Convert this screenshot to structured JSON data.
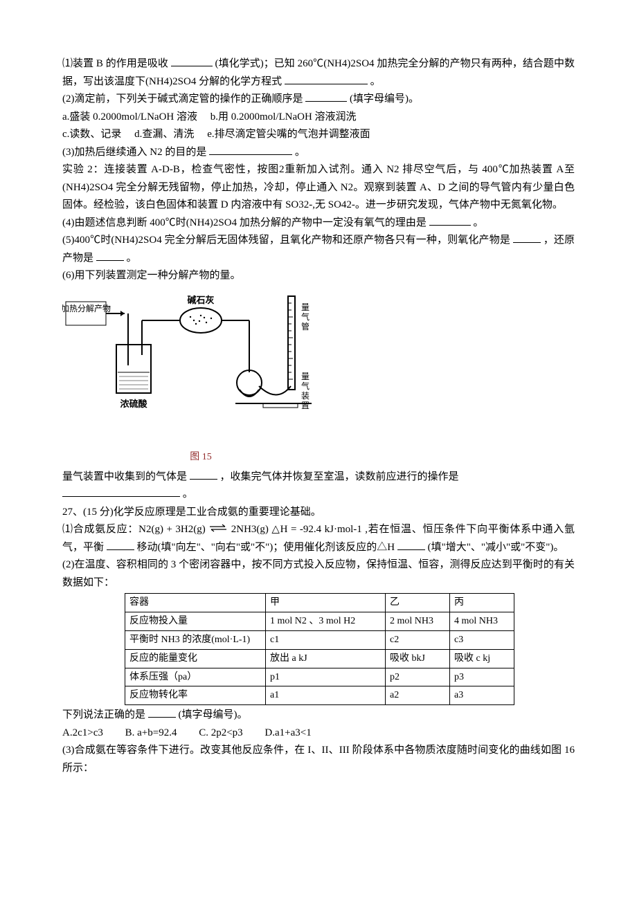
{
  "q26": {
    "p1_a": "⑴装置 B 的作用是吸收",
    "p1_b": "(填化学式)；已知 260℃(NH4)2SO4 加热完全分解的产物只有两种，结合题中数据，写出该温度下(NH4)2SO4 分解的化学方程式",
    "p1_c": "。",
    "p2_a": "(2)滴定前，下列关于碱式滴定管的操作的正确顺序是",
    "p2_b": "(填字母编号)。",
    "opt_a": "a.盛装 0.2000mol/LNaOH 溶液",
    "opt_b": "b.用 0.2000mol/LNaOH 溶液润洗",
    "opt_c": "c.读数、记录",
    "opt_d": "d.查漏、清洗",
    "opt_e": "e.排尽滴定管尖嘴的气泡并调整液面",
    "p3_a": "(3)加热后继续通入 N2 的目的是",
    "p3_b": "。",
    "exp2": "实验 2：连接装置 A-D-B，检查气密性，按图2重新加入试剂。通入 N2 排尽空气后，与 400℃加热装置 A至(NH4)2SO4 完全分解无残留物，停止加热，冷却，停止通入 N2。观察到装置 A、D 之间的导气管内有少量白色固体。经检验，该白色固体和装置 D 内溶液中有 SO32-,无 SO42-。进一步研究发现，气体产物中无氮氧化物。",
    "p4_a": "(4)由题述信息判断 400℃时(NH4)2SO4 加热分解的产物中一定没有氧气的理由是",
    "p4_b": "。",
    "p5_a": "(5)400℃时(NH4)2SO4 完全分解后无固体残留，且氧化产物和还原产物各只有一种，则氧化产物是",
    "p5_b": "，还原产物是",
    "p5_c": "。",
    "p6": "(6)用下列装置测定一种分解产物的量。",
    "fig": {
      "label_left": "加热分解产物",
      "label_mid": "碱石灰",
      "label_bottom": "浓硫酸",
      "label_right_top": "量气管",
      "label_right_bottom": "量气装置",
      "caption": "图 15",
      "stroke": "#000000",
      "caption_color": "#932b2b"
    },
    "p7_a": "量气装置中收集到的气体是",
    "p7_b": "，收集完气体并恢复至室温，读数前应进行的操作是",
    "p7_c": "。"
  },
  "q27": {
    "title": "27、(15 分)化学反应原理是工业合成氨的重要理论基础。",
    "p1_a": "⑴合成氨反应：N2(g) + 3H2(g)",
    "p1_eq": "⇌",
    "p1_b": "2NH3(g) △H = -92.4 kJ·mol-1    ,若在恒温、恒压条件下向平衡体系中通入氩气，平衡",
    "p1_c": "移动(填\"向左\"、\"向右\"或\"不\")；使用催化剂该反应的△H",
    "p1_d": "(填\"增大\"、\"减小\"或\"不变\")。",
    "p2": "(2)在温度、容积相同的 3 个密闭容器中，按不同方式投入反应物，保持恒温、恒容，测得反应达到平衡时的有关数据如下：",
    "table": {
      "columns": [
        "容器",
        "甲",
        "乙",
        "丙"
      ],
      "rows": [
        [
          "反应物投入量",
          "1 mol N2 、3 mol H2",
          "2 mol NH3",
          "4 mol NH3"
        ],
        [
          "平衡时 NH3 的浓度(mol·L-1)",
          "c1",
          "c2",
          "c3"
        ],
        [
          "反应的能量变化",
          "放出 a kJ",
          "吸收 bkJ",
          "吸收 c kj"
        ],
        [
          "体系压强（pa）",
          "p1",
          "p2",
          "p3"
        ],
        [
          "反应物转化率",
          "a1",
          "a2",
          "a3"
        ]
      ],
      "col_widths": [
        "190px",
        "160px",
        "80px",
        "80px"
      ]
    },
    "after_table_a": "下列说法正确的是",
    "after_table_b": "(填字母编号)。",
    "mc": {
      "A": "A.2c1>c3",
      "B": "B. a+b=92.4",
      "C": "C. 2p2<p3",
      "D": "D.a1+a3<1"
    },
    "p3": "(3)合成氨在等容条件下进行。改变其他反应条件，在 I、II、III 阶段体系中各物质浓度随时间变化的曲线如图 16 所示："
  }
}
